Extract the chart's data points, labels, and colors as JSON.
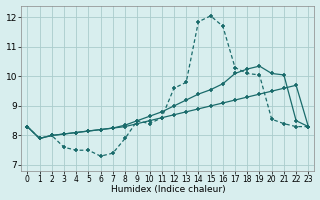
{
  "xlabel": "Humidex (Indice chaleur)",
  "background_color": "#d8eeee",
  "grid_color": "#aacccc",
  "line_color": "#1a6b6b",
  "xlim": [
    -0.5,
    23.5
  ],
  "ylim": [
    6.8,
    12.4
  ],
  "xticks": [
    0,
    1,
    2,
    3,
    4,
    5,
    6,
    7,
    8,
    9,
    10,
    11,
    12,
    13,
    14,
    15,
    16,
    17,
    18,
    19,
    20,
    21,
    22,
    23
  ],
  "yticks": [
    7,
    8,
    9,
    10,
    11,
    12
  ],
  "line1_x": [
    0,
    1,
    2,
    3,
    4,
    5,
    6,
    7,
    8,
    9,
    10,
    11,
    12,
    13,
    14,
    15,
    16,
    17,
    18,
    19,
    20,
    21,
    22,
    23
  ],
  "line1_y": [
    8.3,
    7.9,
    8.0,
    7.6,
    7.5,
    7.5,
    7.3,
    7.4,
    7.9,
    8.5,
    8.4,
    8.6,
    9.6,
    9.8,
    11.85,
    12.05,
    11.7,
    10.3,
    10.1,
    10.05,
    8.55,
    8.4,
    8.3,
    8.3
  ],
  "line2_x": [
    0,
    1,
    2,
    3,
    4,
    5,
    6,
    7,
    8,
    9,
    10,
    11,
    12,
    13,
    14,
    15,
    16,
    17,
    18,
    19,
    20,
    21,
    22,
    23
  ],
  "line2_y": [
    8.3,
    7.9,
    8.0,
    8.05,
    8.1,
    8.15,
    8.2,
    8.25,
    8.35,
    8.5,
    8.65,
    8.8,
    9.0,
    9.2,
    9.4,
    9.55,
    9.75,
    10.1,
    10.25,
    10.35,
    10.1,
    10.05,
    8.5,
    8.3
  ],
  "line3_x": [
    0,
    1,
    2,
    3,
    4,
    5,
    6,
    7,
    8,
    9,
    10,
    11,
    12,
    13,
    14,
    15,
    16,
    17,
    18,
    19,
    20,
    21,
    22,
    23
  ],
  "line3_y": [
    8.3,
    7.9,
    8.0,
    8.05,
    8.1,
    8.15,
    8.2,
    8.25,
    8.3,
    8.4,
    8.5,
    8.6,
    8.7,
    8.8,
    8.9,
    9.0,
    9.1,
    9.2,
    9.3,
    9.4,
    9.5,
    9.6,
    9.7,
    8.3
  ]
}
